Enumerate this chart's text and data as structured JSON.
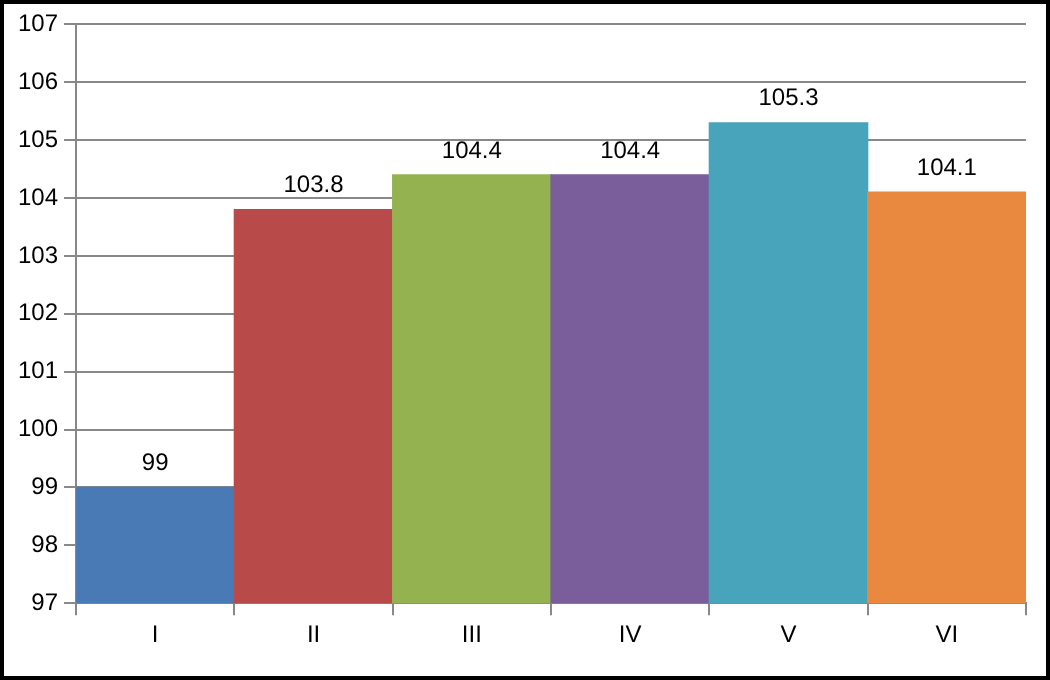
{
  "chart_data": {
    "type": "bar",
    "categories": [
      "I",
      "II",
      "III",
      "IV",
      "V",
      "VI"
    ],
    "values": [
      99,
      103.8,
      104.4,
      104.4,
      105.3,
      104.1
    ],
    "colors": [
      "#4a7ab5",
      "#b84b49",
      "#94b350",
      "#7a5e9c",
      "#48a4bb",
      "#e8893f"
    ],
    "ylim": [
      97,
      107
    ],
    "yticks": [
      97,
      98,
      99,
      100,
      101,
      102,
      103,
      104,
      105,
      106,
      107
    ],
    "grid": "y",
    "data_labels": true
  }
}
